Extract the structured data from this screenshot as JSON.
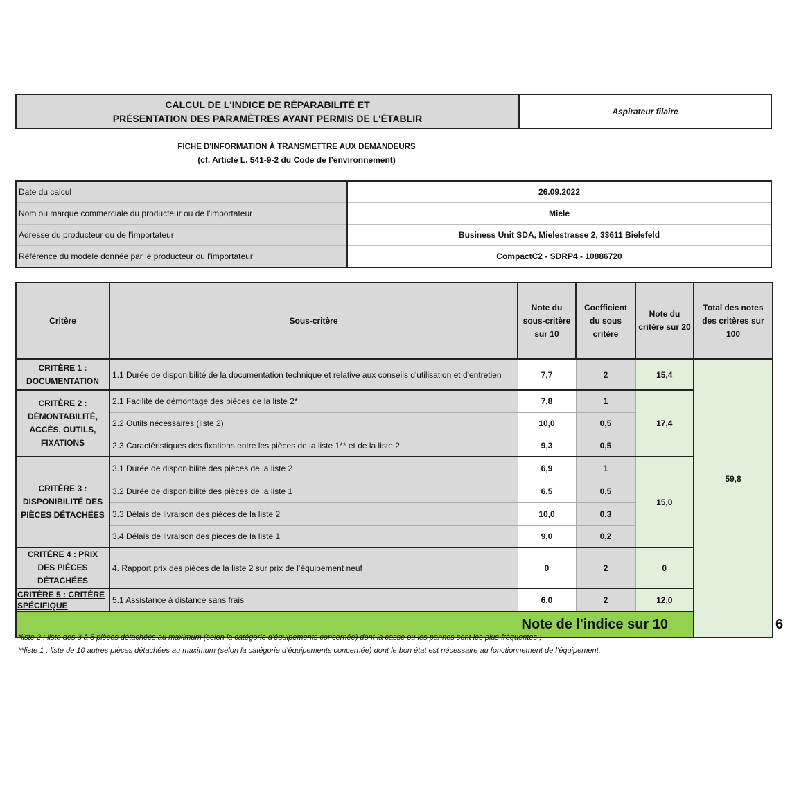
{
  "header": {
    "title_line1": "CALCUL DE L'INDICE DE RÉPARABILITÉ ET",
    "title_line2": "PRÉSENTATION DES PARAMÈTRES AYANT PERMIS DE L'ÉTABLIR",
    "product_type": "Aspirateur filaire"
  },
  "subtitle": {
    "line1": "FICHE D'INFORMATION À TRANSMETTRE AUX DEMANDEURS",
    "line2": "(cf. Article L. 541-9-2 du Code de l’environnement)"
  },
  "info": [
    {
      "label": "Date du calcul",
      "value": "26.09.2022"
    },
    {
      "label": "Nom ou marque commerciale du producteur ou de l'importateur",
      "value": "Miele"
    },
    {
      "label": "Adresse du producteur ou de l'importateur",
      "value": "Business Unit SDA, Mielestrasse 2, 33611 Bielefeld"
    },
    {
      "label": "Référence du modèle donnée par le producteur ou l'importateur",
      "value": "CompactC2 - SDRP4 - 10886720"
    }
  ],
  "table": {
    "headers": [
      "Critère",
      "Sous-critère",
      "Note du sous-critère sur 10",
      "Coefficient du sous critère",
      "Note du critère sur 20",
      "Total des notes des critères sur 100"
    ],
    "criteria": [
      {
        "name": "CRITÈRE 1 : DOCUMENTATION",
        "score20": "15,4",
        "rows": [
          {
            "label": "1.1 Durée de disponibilité de la documentation technique et relative aux conseils d'utilisation et d'entretien",
            "note": "7,7",
            "coef": "2"
          }
        ]
      },
      {
        "name": "CRITÈRE 2 : DÉMONTABILITÉ, ACCÈS, OUTILS, FIXATIONS",
        "score20": "17,4",
        "rows": [
          {
            "label": "2.1 Facilité de démontage des pièces de la liste 2*",
            "note": "7,8",
            "coef": "1"
          },
          {
            "label": "2.2 Outils nécessaires (liste 2)",
            "note": "10,0",
            "coef": "0,5"
          },
          {
            "label": "2.3 Caractéristiques des fixations entre les pièces de la liste 1** et de la liste 2",
            "note": "9,3",
            "coef": "0,5"
          }
        ]
      },
      {
        "name": "CRITÈRE 3 : DISPONIBILITÉ DES PIÈCES DÉTACHÉES",
        "score20": "15,0",
        "rows": [
          {
            "label": "3.1 Durée de disponibilité des pièces de la liste 2",
            "note": "6,9",
            "coef": "1"
          },
          {
            "label": "3.2 Durée de disponibilité des pièces de la liste 1",
            "note": "6,5",
            "coef": "0,5"
          },
          {
            "label": "3.3 Délais de livraison des pièces de la liste 2",
            "note": "10,0",
            "coef": "0,3"
          },
          {
            "label": "3.4 Délais de livraison des pièces de la liste 1",
            "note": "9,0",
            "coef": "0,2"
          }
        ]
      },
      {
        "name": "CRITÈRE 4 : PRIX DES PIÈCES DÉTACHÉES",
        "score20": "0",
        "rows": [
          {
            "label": "4. Rapport prix des pièces de la liste 2 sur prix de l’équipement neuf",
            "note": "0",
            "coef": "2"
          }
        ]
      },
      {
        "name": "CRITÈRE 5 : CRITÈRE SPÉCIFIQUE",
        "score20": "12,0",
        "rows": [
          {
            "label": "5.1 Assistance à distance sans frais",
            "note": "6,0",
            "coef": "2"
          }
        ]
      }
    ],
    "total100": "59,8",
    "index_label": "Note de l'indice sur 10",
    "index_value": "6"
  },
  "footnotes": [
    "*liste 2 : liste des 3 à 5 pièces détachées au maximum (selon la catégorie d’équipements concernée) dont la casse ou les pannes sont les plus fréquentes ;",
    "**liste 1 : liste de 10 autres pièces détachées au maximum (selon la catégorie d’équipements concernée) dont le bon état est nécessaire au fonctionnement de l’équipement."
  ],
  "colors": {
    "header_gray": "#d9d9d9",
    "light_green": "#e2efda",
    "index_green": "#92d050"
  }
}
